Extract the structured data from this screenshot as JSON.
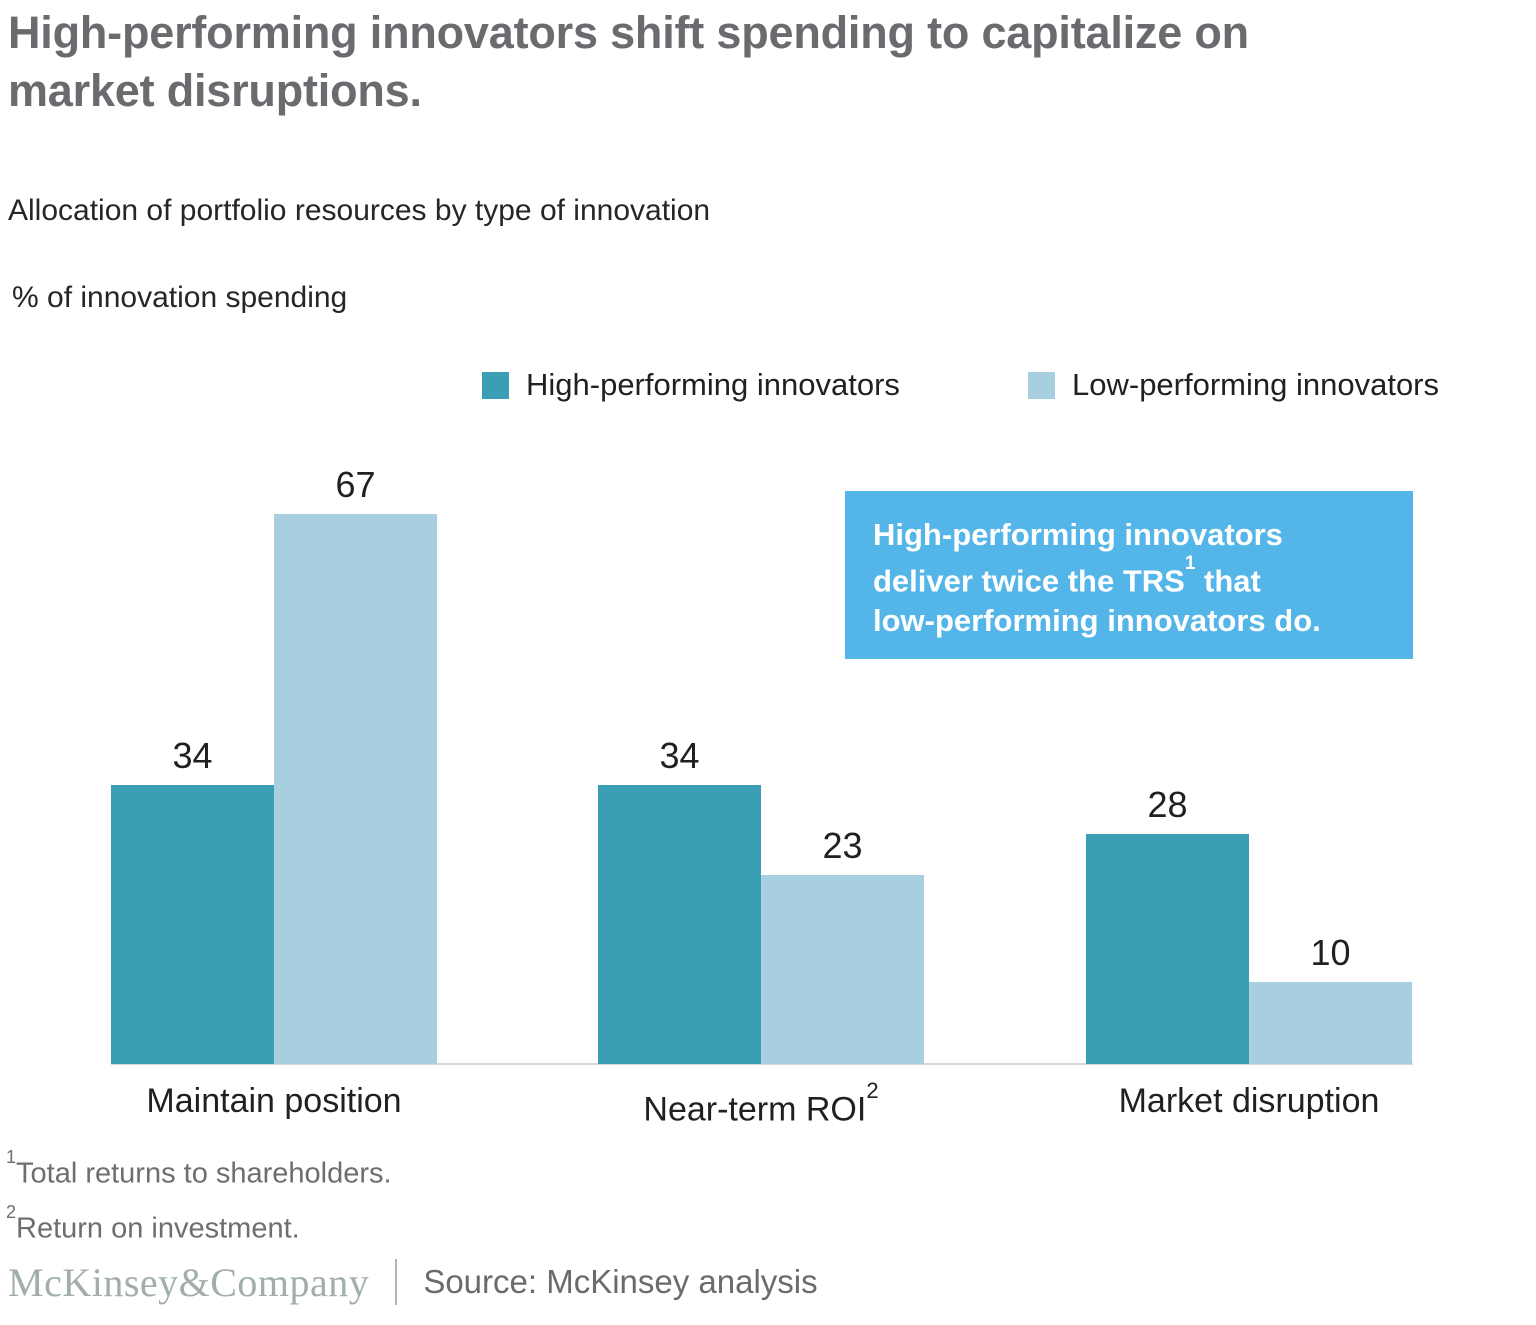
{
  "title": {
    "line1": "High-performing innovators shift spending to capitalize on",
    "line2": "market disruptions."
  },
  "exhibit": {
    "subtitle": "Allocation of portfolio resources by type of innovation",
    "unit_label": "% of innovation spending"
  },
  "callout": {
    "line1": "High-performing innovators",
    "line2_pre": "deliver twice the TRS",
    "line2_sup": "1",
    "line2_post": " that",
    "line3": "low-performing innovators do.",
    "bg_color": "#54b5e8"
  },
  "footnotes": [
    {
      "sup": "1",
      "text": "Total returns to shareholders."
    },
    {
      "sup": "2",
      "text": "Return on investment."
    }
  ],
  "footer": {
    "brand": "McKinsey&Company",
    "source": "Source: McKinsey analysis"
  },
  "colors": {
    "high_performing": "#3a9eb5",
    "low_performing": "#a7cfdf",
    "callout_bg": "#54b5e8",
    "axis_line": "#d7d9d8"
  },
  "chart_data": {
    "type": "bar",
    "grouped": true,
    "title": "Allocation of portfolio resources by type of innovation",
    "ylabel": "% of innovation spending",
    "categories": [
      "Maintain position",
      "Near-term ROI",
      "Market disruption"
    ],
    "category_superscripts": [
      "",
      "2",
      ""
    ],
    "series": [
      {
        "name": "High-performing innovators",
        "color": "#3a9eb5",
        "values": [
          34,
          34,
          28
        ]
      },
      {
        "name": "Low-performing innovators",
        "color": "#a7cfdf",
        "values": [
          67,
          23,
          10
        ]
      }
    ],
    "value_labels_shown": true,
    "ylim": [
      0,
      67
    ],
    "grid": false,
    "legend_position": "top"
  }
}
